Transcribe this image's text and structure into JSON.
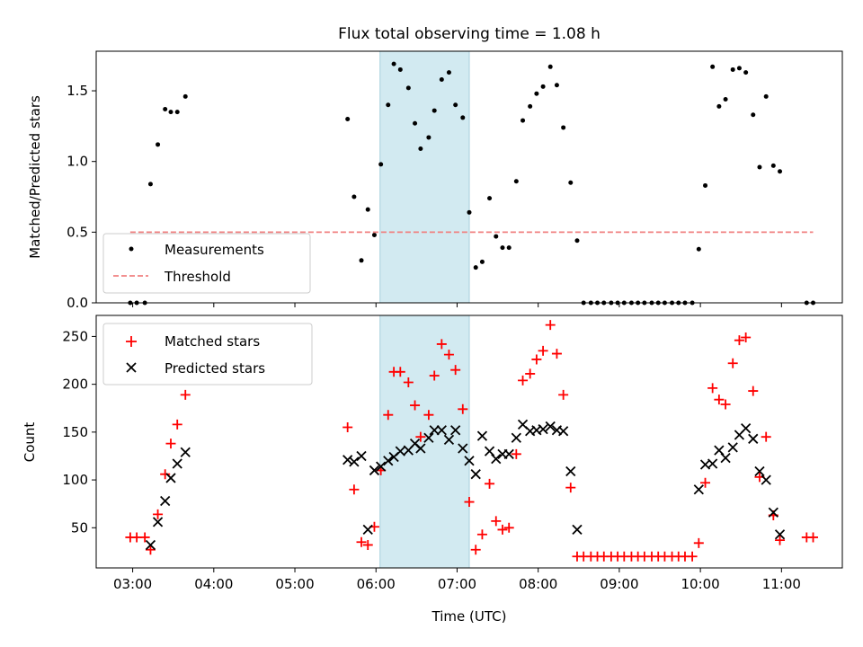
{
  "chart_data": {
    "title": "Flux total observing time = 1.08 h",
    "x_axis": {
      "label": "Time (UTC)",
      "range": [
        2.55,
        11.75
      ],
      "ticks": [
        3,
        4,
        5,
        6,
        7,
        8,
        9,
        10,
        11
      ],
      "tick_labels": [
        "03:00",
        "04:00",
        "05:00",
        "06:00",
        "07:00",
        "08:00",
        "09:00",
        "10:00",
        "11:00"
      ]
    },
    "shaded_interval": {
      "start": 6.05,
      "end": 7.15,
      "color": "#add8e6"
    },
    "panels": [
      {
        "type": "scatter",
        "ylabel": "Matched/Predicted stars",
        "ylim": [
          0,
          1.78
        ],
        "yticks": [
          0.0,
          0.5,
          1.0,
          1.5
        ],
        "ytick_labels": [
          "0.0",
          "0.5",
          "1.0",
          "1.5"
        ],
        "legend": {
          "placement": "lower-left"
        },
        "series": [
          {
            "name": "Measurements",
            "marker": "dot",
            "color": "#000000",
            "points": [
              [
                2.97,
                0
              ],
              [
                3.05,
                0
              ],
              [
                3.15,
                0
              ],
              [
                3.22,
                0.84
              ],
              [
                3.31,
                1.12
              ],
              [
                3.4,
                1.37
              ],
              [
                3.47,
                1.35
              ],
              [
                3.55,
                1.35
              ],
              [
                3.65,
                1.46
              ],
              [
                5.65,
                1.3
              ],
              [
                5.73,
                0.75
              ],
              [
                5.82,
                0.3
              ],
              [
                5.9,
                0.66
              ],
              [
                5.98,
                0.48
              ],
              [
                6.06,
                0.98
              ],
              [
                6.15,
                1.4
              ],
              [
                6.22,
                1.69
              ],
              [
                6.3,
                1.65
              ],
              [
                6.4,
                1.52
              ],
              [
                6.48,
                1.27
              ],
              [
                6.55,
                1.09
              ],
              [
                6.65,
                1.17
              ],
              [
                6.72,
                1.36
              ],
              [
                6.81,
                1.58
              ],
              [
                6.9,
                1.63
              ],
              [
                6.98,
                1.4
              ],
              [
                7.07,
                1.31
              ],
              [
                7.15,
                0.64
              ],
              [
                7.23,
                0.25
              ],
              [
                7.31,
                0.29
              ],
              [
                7.4,
                0.74
              ],
              [
                7.48,
                0.47
              ],
              [
                7.56,
                0.39
              ],
              [
                7.64,
                0.39
              ],
              [
                7.73,
                0.86
              ],
              [
                7.81,
                1.29
              ],
              [
                7.9,
                1.39
              ],
              [
                7.98,
                1.48
              ],
              [
                8.06,
                1.53
              ],
              [
                8.15,
                1.67
              ],
              [
                8.23,
                1.54
              ],
              [
                8.31,
                1.24
              ],
              [
                8.4,
                0.85
              ],
              [
                8.48,
                0.44
              ],
              [
                8.56,
                0
              ],
              [
                8.65,
                0
              ],
              [
                8.73,
                0
              ],
              [
                8.81,
                0
              ],
              [
                8.9,
                0
              ],
              [
                8.98,
                0
              ],
              [
                9.06,
                0
              ],
              [
                9.15,
                0
              ],
              [
                9.23,
                0
              ],
              [
                9.31,
                0
              ],
              [
                9.4,
                0
              ],
              [
                9.48,
                0
              ],
              [
                9.56,
                0
              ],
              [
                9.65,
                0
              ],
              [
                9.73,
                0
              ],
              [
                9.81,
                0
              ],
              [
                9.9,
                0
              ],
              [
                9.98,
                0.38
              ],
              [
                10.06,
                0.83
              ],
              [
                10.15,
                1.67
              ],
              [
                10.23,
                1.39
              ],
              [
                10.31,
                1.44
              ],
              [
                10.4,
                1.65
              ],
              [
                10.48,
                1.66
              ],
              [
                10.56,
                1.63
              ],
              [
                10.65,
                1.33
              ],
              [
                10.73,
                0.96
              ],
              [
                10.81,
                1.46
              ],
              [
                10.9,
                0.97
              ],
              [
                10.98,
                0.93
              ],
              [
                11.31,
                0
              ],
              [
                11.39,
                0
              ]
            ]
          },
          {
            "name": "Threshold",
            "type": "line",
            "style": "dashed",
            "color": "#f08080",
            "points": [
              [
                2.97,
                0.5
              ],
              [
                11.39,
                0.5
              ]
            ]
          }
        ]
      },
      {
        "type": "scatter",
        "ylabel": "Count",
        "ylim": [
          8,
          272
        ],
        "yticks": [
          50,
          100,
          150,
          200,
          250
        ],
        "ytick_labels": [
          "50",
          "100",
          "150",
          "200",
          "250"
        ],
        "legend": {
          "placement": "upper-left"
        },
        "series": [
          {
            "name": "Matched stars",
            "marker": "plus",
            "color": "#ff0000",
            "points": [
              [
                2.97,
                40
              ],
              [
                3.05,
                40
              ],
              [
                3.15,
                40
              ],
              [
                3.22,
                27
              ],
              [
                3.31,
                64
              ],
              [
                3.4,
                106
              ],
              [
                3.47,
                138
              ],
              [
                3.55,
                158
              ],
              [
                3.65,
                189
              ],
              [
                5.65,
                155
              ],
              [
                5.73,
                90
              ],
              [
                5.82,
                35
              ],
              [
                5.9,
                32
              ],
              [
                5.98,
                51
              ],
              [
                6.06,
                110
              ],
              [
                6.15,
                168
              ],
              [
                6.22,
                213
              ],
              [
                6.3,
                213
              ],
              [
                6.4,
                202
              ],
              [
                6.48,
                178
              ],
              [
                6.55,
                145
              ],
              [
                6.65,
                168
              ],
              [
                6.72,
                209
              ],
              [
                6.81,
                242
              ],
              [
                6.9,
                231
              ],
              [
                6.98,
                215
              ],
              [
                7.07,
                174
              ],
              [
                7.15,
                77
              ],
              [
                7.23,
                27
              ],
              [
                7.31,
                43
              ],
              [
                7.4,
                96
              ],
              [
                7.48,
                57
              ],
              [
                7.56,
                48
              ],
              [
                7.64,
                50
              ],
              [
                7.73,
                127
              ],
              [
                7.81,
                204
              ],
              [
                7.9,
                211
              ],
              [
                7.98,
                226
              ],
              [
                8.06,
                235
              ],
              [
                8.15,
                262
              ],
              [
                8.23,
                232
              ],
              [
                8.31,
                189
              ],
              [
                8.4,
                92
              ],
              [
                8.48,
                20
              ],
              [
                8.56,
                20
              ],
              [
                8.65,
                20
              ],
              [
                8.73,
                20
              ],
              [
                8.81,
                20
              ],
              [
                8.9,
                20
              ],
              [
                8.98,
                20
              ],
              [
                9.06,
                20
              ],
              [
                9.15,
                20
              ],
              [
                9.23,
                20
              ],
              [
                9.31,
                20
              ],
              [
                9.4,
                20
              ],
              [
                9.48,
                20
              ],
              [
                9.56,
                20
              ],
              [
                9.65,
                20
              ],
              [
                9.73,
                20
              ],
              [
                9.81,
                20
              ],
              [
                9.9,
                20
              ],
              [
                9.98,
                34
              ],
              [
                10.06,
                97
              ],
              [
                10.15,
                196
              ],
              [
                10.23,
                184
              ],
              [
                10.31,
                179
              ],
              [
                10.4,
                222
              ],
              [
                10.48,
                246
              ],
              [
                10.56,
                249
              ],
              [
                10.65,
                193
              ],
              [
                10.73,
                103
              ],
              [
                10.81,
                145
              ],
              [
                10.9,
                63
              ],
              [
                10.98,
                37
              ],
              [
                11.31,
                40
              ],
              [
                11.39,
                40
              ]
            ]
          },
          {
            "name": "Predicted stars",
            "marker": "x",
            "color": "#000000",
            "points": [
              [
                3.22,
                32
              ],
              [
                3.31,
                56
              ],
              [
                3.4,
                78
              ],
              [
                3.47,
                102
              ],
              [
                3.55,
                117
              ],
              [
                3.65,
                129
              ],
              [
                5.65,
                121
              ],
              [
                5.73,
                119
              ],
              [
                5.82,
                125
              ],
              [
                5.9,
                48
              ],
              [
                5.98,
                110
              ],
              [
                6.06,
                114
              ],
              [
                6.15,
                120
              ],
              [
                6.22,
                124
              ],
              [
                6.3,
                130
              ],
              [
                6.4,
                131
              ],
              [
                6.48,
                138
              ],
              [
                6.55,
                133
              ],
              [
                6.65,
                144
              ],
              [
                6.72,
                152
              ],
              [
                6.81,
                152
              ],
              [
                6.9,
                142
              ],
              [
                6.98,
                152
              ],
              [
                7.07,
                133
              ],
              [
                7.15,
                120
              ],
              [
                7.23,
                106
              ],
              [
                7.31,
                146
              ],
              [
                7.4,
                130
              ],
              [
                7.48,
                122
              ],
              [
                7.56,
                127
              ],
              [
                7.64,
                127
              ],
              [
                7.73,
                144
              ],
              [
                7.81,
                158
              ],
              [
                7.9,
                151
              ],
              [
                7.98,
                152
              ],
              [
                8.06,
                153
              ],
              [
                8.15,
                156
              ],
              [
                8.23,
                152
              ],
              [
                8.31,
                151
              ],
              [
                8.4,
                109
              ],
              [
                8.48,
                48
              ],
              [
                9.98,
                90
              ],
              [
                10.06,
                116
              ],
              [
                10.15,
                117
              ],
              [
                10.23,
                131
              ],
              [
                10.31,
                123
              ],
              [
                10.4,
                134
              ],
              [
                10.48,
                147
              ],
              [
                10.56,
                154
              ],
              [
                10.65,
                143
              ],
              [
                10.73,
                109
              ],
              [
                10.81,
                100
              ],
              [
                10.9,
                66
              ],
              [
                10.98,
                43
              ]
            ]
          }
        ]
      }
    ]
  }
}
